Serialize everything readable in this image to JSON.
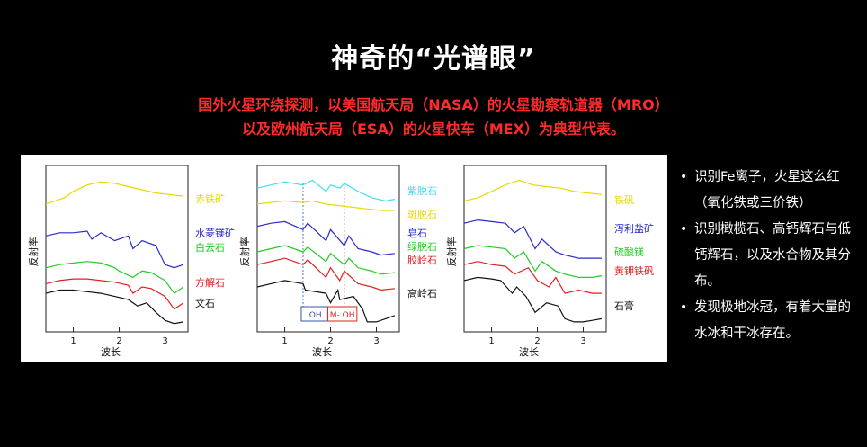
{
  "title": "神奇的“光谱眼”",
  "subtitle_line1": "国外火星环绕探测，以美国航天局（NASA）的火星勘察轨道器（MRO）",
  "subtitle_line2": "以及欧州航天局（ESA）的火星快车（MEX）为典型代表。",
  "bullets": [
    "识别Fe离子，火星这么红（氧化铁或三价铁）",
    "识别橄榄石、高钙辉石与低钙辉石，以及水合物及其分布。",
    "发现极地冰冠，有着大量的水冰和干冰存在。"
  ],
  "chart_data": [
    {
      "type": "line",
      "xlabel": "波长",
      "ylabel": "反射率",
      "xticks": [
        "1",
        "2",
        "3"
      ],
      "xlim": [
        0.4,
        3.5
      ],
      "series": [
        {
          "name": "赤铁矿",
          "color": "#e8d800",
          "x": [
            0.4,
            0.6,
            0.8,
            1.0,
            1.3,
            1.6,
            1.9,
            2.2,
            2.5,
            2.8,
            3.1,
            3.4
          ],
          "y": [
            0.78,
            0.8,
            0.82,
            0.86,
            0.9,
            0.92,
            0.91,
            0.89,
            0.87,
            0.85,
            0.84,
            0.83
          ]
        },
        {
          "name": "水菱镁矿",
          "color": "#2a2acc",
          "x": [
            0.4,
            0.7,
            1.0,
            1.3,
            1.4,
            1.6,
            1.9,
            2.2,
            2.3,
            2.5,
            2.8,
            3.0,
            3.2,
            3.4
          ],
          "y": [
            0.58,
            0.6,
            0.6,
            0.61,
            0.56,
            0.6,
            0.55,
            0.58,
            0.5,
            0.55,
            0.52,
            0.4,
            0.38,
            0.4
          ]
        },
        {
          "name": "白云石",
          "color": "#22cc22",
          "x": [
            0.4,
            0.7,
            1.0,
            1.3,
            1.6,
            1.9,
            2.0,
            2.3,
            2.5,
            2.7,
            3.0,
            3.2,
            3.4
          ],
          "y": [
            0.38,
            0.4,
            0.41,
            0.42,
            0.41,
            0.38,
            0.36,
            0.32,
            0.36,
            0.35,
            0.3,
            0.22,
            0.26
          ]
        },
        {
          "name": "方解石",
          "color": "#dd2222",
          "x": [
            0.4,
            0.7,
            1.0,
            1.3,
            1.6,
            1.9,
            2.2,
            2.3,
            2.5,
            2.7,
            3.0,
            3.2,
            3.4
          ],
          "y": [
            0.28,
            0.3,
            0.31,
            0.31,
            0.3,
            0.29,
            0.27,
            0.22,
            0.26,
            0.25,
            0.2,
            0.12,
            0.16
          ]
        },
        {
          "name": "文石",
          "color": "#111111",
          "x": [
            0.4,
            0.7,
            1.0,
            1.3,
            1.6,
            1.9,
            2.2,
            2.4,
            2.6,
            2.8,
            3.0,
            3.2,
            3.4
          ],
          "y": [
            0.22,
            0.24,
            0.24,
            0.23,
            0.22,
            0.2,
            0.18,
            0.14,
            0.16,
            0.1,
            0.05,
            0.03,
            0.04
          ]
        }
      ]
    },
    {
      "type": "line",
      "xlabel": "波长",
      "ylabel": "反射率",
      "xticks": [
        "1",
        "2",
        "3"
      ],
      "xlim": [
        0.4,
        3.5
      ],
      "annotations": [
        "OH",
        "M- OH"
      ],
      "series": [
        {
          "name": "紫脱石",
          "color": "#44ddee",
          "x": [
            0.4,
            0.7,
            1.0,
            1.4,
            1.6,
            1.9,
            2.0,
            2.2,
            2.3,
            2.6,
            2.9,
            3.2,
            3.4
          ],
          "y": [
            0.88,
            0.9,
            0.92,
            0.9,
            0.93,
            0.86,
            0.9,
            0.88,
            0.91,
            0.86,
            0.82,
            0.8,
            0.81
          ]
        },
        {
          "name": "斑脱石",
          "color": "#e8d800",
          "x": [
            0.4,
            0.7,
            1.0,
            1.4,
            1.6,
            1.9,
            2.2,
            2.5,
            2.8,
            3.1,
            3.4
          ],
          "y": [
            0.78,
            0.79,
            0.8,
            0.79,
            0.8,
            0.78,
            0.77,
            0.76,
            0.75,
            0.74,
            0.74
          ]
        },
        {
          "name": "皂石",
          "color": "#2a2acc",
          "x": [
            0.4,
            0.7,
            1.0,
            1.4,
            1.5,
            1.9,
            2.0,
            2.3,
            2.4,
            2.6,
            2.9,
            3.1,
            3.4
          ],
          "y": [
            0.64,
            0.66,
            0.67,
            0.62,
            0.66,
            0.55,
            0.62,
            0.52,
            0.58,
            0.5,
            0.48,
            0.46,
            0.47
          ]
        },
        {
          "name": "绿脱石",
          "color": "#22cc22",
          "x": [
            0.4,
            0.7,
            1.0,
            1.4,
            1.5,
            1.9,
            2.0,
            2.3,
            2.4,
            2.6,
            2.9,
            3.1,
            3.4
          ],
          "y": [
            0.48,
            0.5,
            0.52,
            0.48,
            0.51,
            0.42,
            0.47,
            0.4,
            0.44,
            0.38,
            0.36,
            0.34,
            0.35
          ]
        },
        {
          "name": "胶岭石",
          "color": "#dd2222",
          "x": [
            0.4,
            0.7,
            1.0,
            1.4,
            1.5,
            1.9,
            2.0,
            2.2,
            2.3,
            2.6,
            2.9,
            3.1,
            3.4
          ],
          "y": [
            0.4,
            0.42,
            0.44,
            0.4,
            0.43,
            0.32,
            0.38,
            0.3,
            0.36,
            0.28,
            0.26,
            0.24,
            0.25
          ]
        },
        {
          "name": "高岭石",
          "color": "#111111",
          "x": [
            0.4,
            0.7,
            1.0,
            1.4,
            1.45,
            1.9,
            2.0,
            2.16,
            2.2,
            2.5,
            2.7,
            2.8,
            3.0,
            3.2,
            3.4
          ],
          "y": [
            0.26,
            0.28,
            0.3,
            0.28,
            0.24,
            0.22,
            0.16,
            0.24,
            0.18,
            0.2,
            0.12,
            0.04,
            0.04,
            0.06,
            0.08
          ]
        }
      ]
    },
    {
      "type": "line",
      "xlabel": "波长",
      "ylabel": "反射率",
      "xticks": [
        "1",
        "2",
        "3"
      ],
      "xlim": [
        0.4,
        3.5
      ],
      "series": [
        {
          "name": "铁矾",
          "color": "#e8d800",
          "x": [
            0.4,
            0.7,
            1.0,
            1.3,
            1.6,
            1.9,
            2.2,
            2.5,
            2.8,
            3.1,
            3.4
          ],
          "y": [
            0.8,
            0.82,
            0.86,
            0.9,
            0.93,
            0.9,
            0.89,
            0.88,
            0.86,
            0.85,
            0.84
          ]
        },
        {
          "name": "泻利盐矿",
          "color": "#2a2acc",
          "x": [
            0.4,
            0.7,
            1.0,
            1.3,
            1.5,
            1.7,
            1.95,
            2.1,
            2.4,
            2.6,
            2.9,
            3.2,
            3.4
          ],
          "y": [
            0.66,
            0.68,
            0.67,
            0.66,
            0.6,
            0.64,
            0.5,
            0.56,
            0.48,
            0.46,
            0.44,
            0.44,
            0.44
          ]
        },
        {
          "name": "硫酸镁",
          "color": "#22cc22",
          "x": [
            0.4,
            0.7,
            1.0,
            1.3,
            1.5,
            1.7,
            1.95,
            2.1,
            2.4,
            2.6,
            2.9,
            3.2,
            3.4
          ],
          "y": [
            0.5,
            0.52,
            0.51,
            0.5,
            0.44,
            0.48,
            0.36,
            0.42,
            0.36,
            0.34,
            0.32,
            0.32,
            0.33
          ]
        },
        {
          "name": "黄钾铁矾",
          "color": "#dd2222",
          "x": [
            0.4,
            0.7,
            1.0,
            1.3,
            1.5,
            1.8,
            2.0,
            2.25,
            2.4,
            2.6,
            2.9,
            3.2,
            3.4
          ],
          "y": [
            0.4,
            0.42,
            0.4,
            0.39,
            0.34,
            0.38,
            0.3,
            0.26,
            0.32,
            0.22,
            0.24,
            0.22,
            0.22
          ]
        },
        {
          "name": "石膏",
          "color": "#111111",
          "x": [
            0.4,
            0.7,
            1.0,
            1.2,
            1.45,
            1.55,
            1.75,
            1.95,
            2.2,
            2.45,
            2.6,
            2.8,
            3.0,
            3.2,
            3.4
          ],
          "y": [
            0.3,
            0.32,
            0.31,
            0.3,
            0.22,
            0.26,
            0.2,
            0.1,
            0.16,
            0.14,
            0.06,
            0.04,
            0.04,
            0.05,
            0.06
          ]
        }
      ]
    }
  ]
}
